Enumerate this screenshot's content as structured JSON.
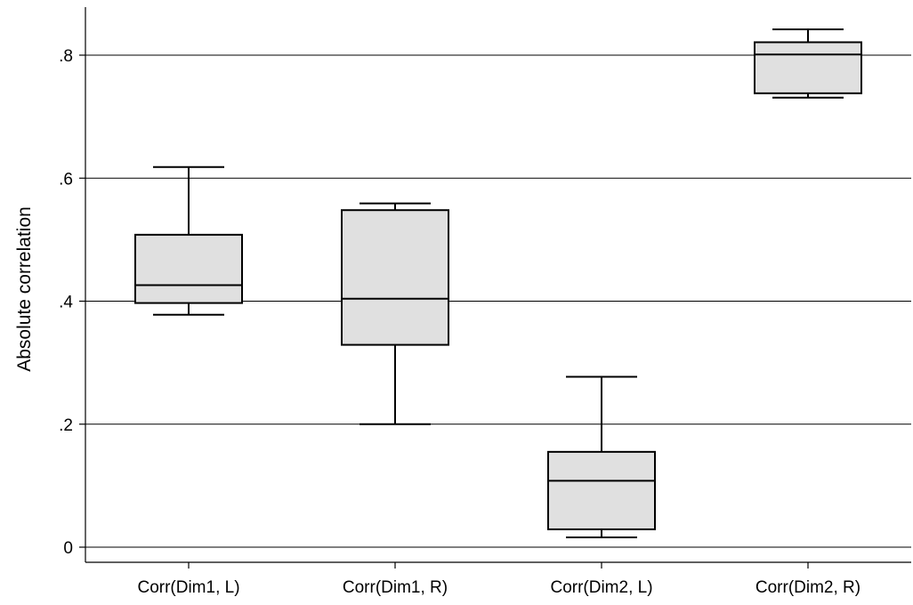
{
  "chart_data": {
    "type": "box",
    "title": "",
    "xlabel": "",
    "ylabel": "Absolute correlation",
    "ylim": [
      -0.02,
      0.88
    ],
    "y_ticks": [
      {
        "value": 0,
        "label": "0"
      },
      {
        "value": 0.2,
        "label": ".2"
      },
      {
        "value": 0.4,
        "label": ".4"
      },
      {
        "value": 0.6,
        "label": ".6"
      },
      {
        "value": 0.8,
        "label": ".8"
      }
    ],
    "grid": true,
    "categories": [
      "Corr(Dim1, L)",
      "Corr(Dim1, R)",
      "Corr(Dim2, L)",
      "Corr(Dim2, R)"
    ],
    "boxes": [
      {
        "category": "Corr(Dim1, L)",
        "whisker_low": 0.378,
        "q1": 0.397,
        "median": 0.426,
        "q3": 0.508,
        "whisker_high": 0.618
      },
      {
        "category": "Corr(Dim1, R)",
        "whisker_low": 0.2,
        "q1": 0.329,
        "median": 0.404,
        "q3": 0.548,
        "whisker_high": 0.559
      },
      {
        "category": "Corr(Dim2, L)",
        "whisker_low": 0.016,
        "q1": 0.029,
        "median": 0.108,
        "q3": 0.155,
        "whisker_high": 0.277
      },
      {
        "category": "Corr(Dim2, R)",
        "whisker_low": 0.731,
        "q1": 0.738,
        "median": 0.801,
        "q3": 0.821,
        "whisker_high": 0.842
      }
    ],
    "colors": {
      "box_fill": "#e0e0e0",
      "stroke": "#000000",
      "grid": "#000000"
    }
  }
}
